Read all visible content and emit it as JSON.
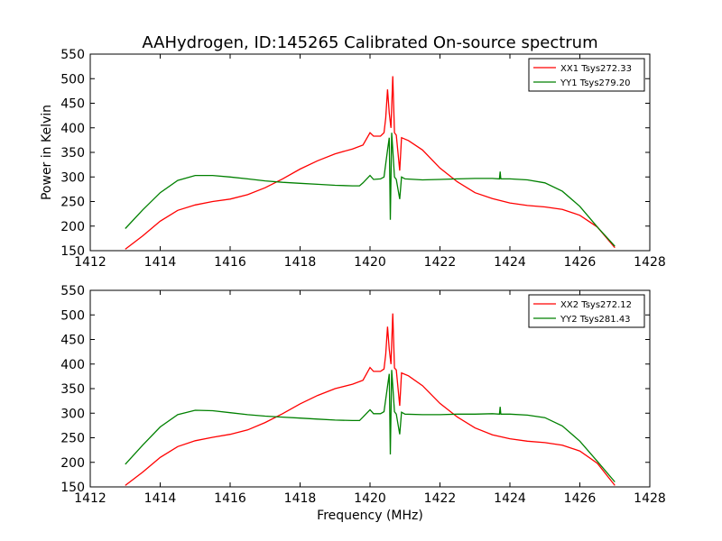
{
  "figure": {
    "title": "AAHydrogen, ID:145265 Calibrated On-source spectrum"
  },
  "chart_data": [
    {
      "type": "line",
      "title": "AAHydrogen, ID:145265 Calibrated On-source spectrum",
      "xlabel": "",
      "ylabel": "Power in Kelvin",
      "xlim": [
        1412,
        1428
      ],
      "ylim": [
        150,
        550
      ],
      "x_ticks": [
        "1412",
        "1414",
        "1416",
        "1418",
        "1420",
        "1422",
        "1424",
        "1426",
        "1428"
      ],
      "y_ticks": [
        "150",
        "200",
        "250",
        "300",
        "350",
        "400",
        "450",
        "500",
        "550"
      ],
      "legend_position": "top-right",
      "series": [
        {
          "name": "XX1 Tsys272.33",
          "color": "#ff0000",
          "points": [
            [
              1413.0,
              153
            ],
            [
              1413.5,
              180
            ],
            [
              1414.0,
              210
            ],
            [
              1414.5,
              232
            ],
            [
              1415.0,
              243
            ],
            [
              1415.5,
              250
            ],
            [
              1416.0,
              255
            ],
            [
              1416.5,
              264
            ],
            [
              1417.0,
              278
            ],
            [
              1417.5,
              296
            ],
            [
              1418.0,
              316
            ],
            [
              1418.5,
              333
            ],
            [
              1419.0,
              347
            ],
            [
              1419.5,
              357
            ],
            [
              1419.8,
              365
            ],
            [
              1420.0,
              390
            ],
            [
              1420.1,
              383
            ],
            [
              1420.3,
              383
            ],
            [
              1420.4,
              390
            ],
            [
              1420.45,
              420
            ],
            [
              1420.5,
              478
            ],
            [
              1420.55,
              430
            ],
            [
              1420.6,
              400
            ],
            [
              1420.65,
              505
            ],
            [
              1420.7,
              390
            ],
            [
              1420.75,
              385
            ],
            [
              1420.85,
              313
            ],
            [
              1420.9,
              380
            ],
            [
              1421.1,
              374
            ],
            [
              1421.5,
              355
            ],
            [
              1422.0,
              318
            ],
            [
              1422.5,
              290
            ],
            [
              1423.0,
              268
            ],
            [
              1423.5,
              256
            ],
            [
              1424.0,
              247
            ],
            [
              1424.5,
              242
            ],
            [
              1425.0,
              239
            ],
            [
              1425.5,
              234
            ],
            [
              1426.0,
              222
            ],
            [
              1426.5,
              198
            ],
            [
              1427.0,
              156
            ]
          ]
        },
        {
          "name": "YY1 Tsys279.20",
          "color": "#008000",
          "points": [
            [
              1413.0,
              195
            ],
            [
              1413.5,
              233
            ],
            [
              1414.0,
              268
            ],
            [
              1414.5,
              293
            ],
            [
              1415.0,
              303
            ],
            [
              1415.5,
              303
            ],
            [
              1416.0,
              300
            ],
            [
              1416.5,
              296
            ],
            [
              1417.0,
              292
            ],
            [
              1417.5,
              289
            ],
            [
              1418.0,
              287
            ],
            [
              1418.5,
              285
            ],
            [
              1419.0,
              283
            ],
            [
              1419.5,
              282
            ],
            [
              1419.7,
              282
            ],
            [
              1419.8,
              288
            ],
            [
              1420.0,
              303
            ],
            [
              1420.1,
              295
            ],
            [
              1420.3,
              296
            ],
            [
              1420.4,
              300
            ],
            [
              1420.5,
              355
            ],
            [
              1420.55,
              380
            ],
            [
              1420.58,
              213
            ],
            [
              1420.62,
              390
            ],
            [
              1420.7,
              300
            ],
            [
              1420.75,
              295
            ],
            [
              1420.85,
              255
            ],
            [
              1420.9,
              300
            ],
            [
              1421.0,
              296
            ],
            [
              1421.5,
              294
            ],
            [
              1422.0,
              295
            ],
            [
              1422.5,
              296
            ],
            [
              1423.0,
              297
            ],
            [
              1423.5,
              297
            ],
            [
              1423.7,
              296
            ],
            [
              1423.72,
              311
            ],
            [
              1423.74,
              296
            ],
            [
              1424.0,
              296
            ],
            [
              1424.5,
              294
            ],
            [
              1425.0,
              288
            ],
            [
              1425.5,
              271
            ],
            [
              1426.0,
              240
            ],
            [
              1426.5,
              198
            ],
            [
              1427.0,
              159
            ]
          ]
        }
      ]
    },
    {
      "type": "line",
      "title": "",
      "xlabel": "Frequency (MHz)",
      "ylabel": "",
      "xlim": [
        1412,
        1428
      ],
      "ylim": [
        150,
        550
      ],
      "x_ticks": [
        "1412",
        "1414",
        "1416",
        "1418",
        "1420",
        "1422",
        "1424",
        "1426",
        "1428"
      ],
      "y_ticks": [
        "150",
        "200",
        "250",
        "300",
        "350",
        "400",
        "450",
        "500",
        "550"
      ],
      "legend_position": "top-right",
      "series": [
        {
          "name": "XX2 Tsys272.12",
          "color": "#ff0000",
          "points": [
            [
              1413.0,
              153
            ],
            [
              1413.5,
              180
            ],
            [
              1414.0,
              210
            ],
            [
              1414.5,
              232
            ],
            [
              1415.0,
              244
            ],
            [
              1415.5,
              251
            ],
            [
              1416.0,
              257
            ],
            [
              1416.5,
              266
            ],
            [
              1417.0,
              281
            ],
            [
              1417.5,
              299
            ],
            [
              1418.0,
              319
            ],
            [
              1418.5,
              336
            ],
            [
              1419.0,
              350
            ],
            [
              1419.5,
              359
            ],
            [
              1419.8,
              367
            ],
            [
              1420.0,
              393
            ],
            [
              1420.1,
              385
            ],
            [
              1420.3,
              385
            ],
            [
              1420.4,
              390
            ],
            [
              1420.45,
              420
            ],
            [
              1420.5,
              476
            ],
            [
              1420.55,
              430
            ],
            [
              1420.6,
              400
            ],
            [
              1420.65,
              503
            ],
            [
              1420.7,
              392
            ],
            [
              1420.75,
              388
            ],
            [
              1420.85,
              315
            ],
            [
              1420.9,
              382
            ],
            [
              1421.1,
              376
            ],
            [
              1421.5,
              356
            ],
            [
              1422.0,
              320
            ],
            [
              1422.5,
              292
            ],
            [
              1423.0,
              270
            ],
            [
              1423.5,
              256
            ],
            [
              1424.0,
              248
            ],
            [
              1424.5,
              243
            ],
            [
              1425.0,
              240
            ],
            [
              1425.5,
              235
            ],
            [
              1426.0,
              223
            ],
            [
              1426.5,
              198
            ],
            [
              1427.0,
              153
            ]
          ]
        },
        {
          "name": "YY2 Tsys281.43",
          "color": "#008000",
          "points": [
            [
              1413.0,
              196
            ],
            [
              1413.5,
              235
            ],
            [
              1414.0,
              272
            ],
            [
              1414.5,
              297
            ],
            [
              1415.0,
              306
            ],
            [
              1415.5,
              305
            ],
            [
              1416.0,
              301
            ],
            [
              1416.5,
              297
            ],
            [
              1417.0,
              294
            ],
            [
              1417.5,
              292
            ],
            [
              1418.0,
              290
            ],
            [
              1418.5,
              288
            ],
            [
              1419.0,
              286
            ],
            [
              1419.5,
              285
            ],
            [
              1419.7,
              285
            ],
            [
              1419.8,
              292
            ],
            [
              1420.0,
              307
            ],
            [
              1420.1,
              299
            ],
            [
              1420.3,
              299
            ],
            [
              1420.4,
              303
            ],
            [
              1420.5,
              355
            ],
            [
              1420.55,
              380
            ],
            [
              1420.58,
              216
            ],
            [
              1420.62,
              388
            ],
            [
              1420.7,
              303
            ],
            [
              1420.75,
              298
            ],
            [
              1420.85,
              257
            ],
            [
              1420.9,
              302
            ],
            [
              1421.0,
              298
            ],
            [
              1421.5,
              297
            ],
            [
              1422.0,
              297
            ],
            [
              1422.5,
              298
            ],
            [
              1423.0,
              298
            ],
            [
              1423.5,
              299
            ],
            [
              1423.7,
              298
            ],
            [
              1423.72,
              313
            ],
            [
              1423.74,
              298
            ],
            [
              1424.0,
              298
            ],
            [
              1424.5,
              296
            ],
            [
              1425.0,
              291
            ],
            [
              1425.5,
              274
            ],
            [
              1426.0,
              243
            ],
            [
              1426.5,
              202
            ],
            [
              1427.0,
              160
            ]
          ]
        }
      ]
    }
  ]
}
